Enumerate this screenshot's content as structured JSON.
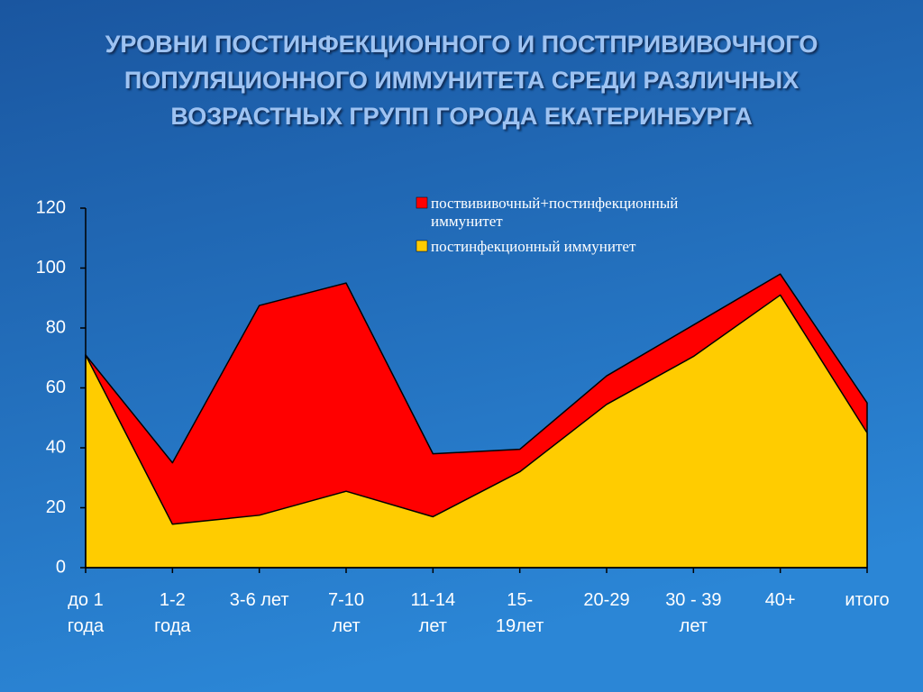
{
  "chart_data": {
    "type": "stacked-area",
    "title": [
      "УРОВНИ ПОСТИНФЕКЦИОННОГО И ПОСТПРИВИВОЧНОГО",
      "ПОПУЛЯЦИОННОГО ИММУНИТЕТА СРЕДИ РАЗЛИЧНЫХ",
      "ВОЗРАСТНЫХ ГРУПП ГОРОДА ЕКАТЕРИНБУРГА"
    ],
    "categories": [
      "до 1\nгода",
      "1-2\nгода",
      "3-6 лет",
      "7-10\nлет",
      "11-14\nлет",
      "15-\n19лет",
      "20-29",
      "30 - 39\nлет",
      "40+",
      "итого"
    ],
    "series": [
      {
        "name": "постинфекционный иммунитет",
        "color": "#ffcc00",
        "values": [
          71,
          14.5,
          17.5,
          25.5,
          17,
          32,
          54.5,
          70.5,
          91,
          45
        ]
      },
      {
        "name": "поствививочный+постинфекционный\nиммунитет",
        "color": "#ff0000",
        "values": [
          0,
          20.5,
          70,
          69.5,
          21,
          7.5,
          9.5,
          10.5,
          7,
          10
        ]
      }
    ],
    "ylim": [
      0,
      120
    ],
    "yticks": [
      0,
      20,
      40,
      60,
      80,
      100,
      120
    ]
  }
}
